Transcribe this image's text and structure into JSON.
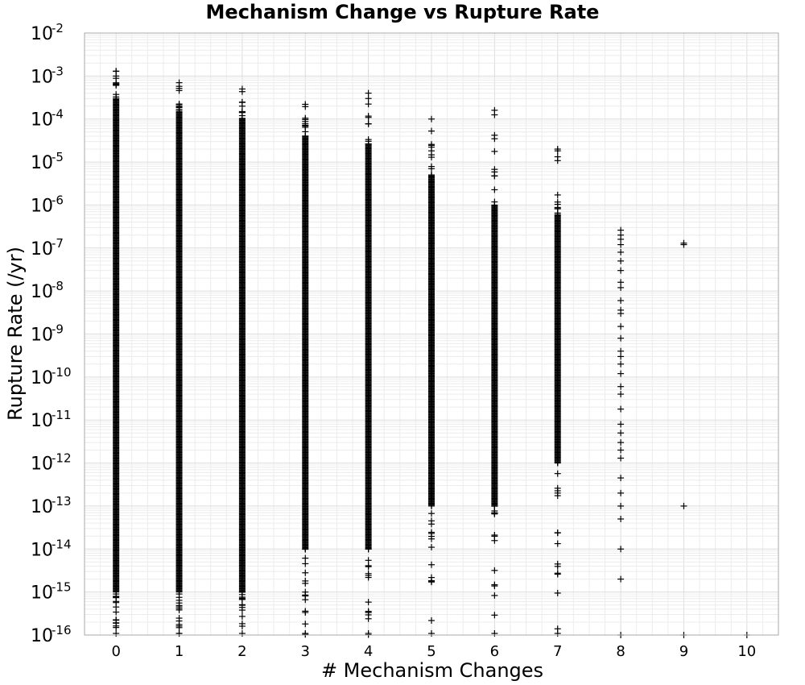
{
  "chart_data": {
    "type": "scatter",
    "title": "Mechanism Change vs Rupture Rate",
    "xlabel": "# Mechanism Changes",
    "ylabel": "Rupture Rate (/yr)",
    "marker": "plus",
    "marker_color": "#000000",
    "grid": true,
    "legend": "none",
    "xlim": [
      -0.5,
      10.5
    ],
    "xticks": [
      0,
      1,
      2,
      3,
      4,
      5,
      6,
      7,
      8,
      9,
      10
    ],
    "y_scale": "log",
    "ylim": [
      1e-16,
      0.01
    ],
    "yticks_exponents": [
      -16,
      -15,
      -14,
      -13,
      -12,
      -11,
      -10,
      -9,
      -8,
      -7,
      -6,
      -5,
      -4,
      -3,
      -2
    ],
    "ytick_base": "10",
    "series": [
      {
        "x": 0,
        "y_max": 0.0013,
        "y_min": 1e-16,
        "dense_max": 0.0003,
        "dense_min": 1e-15
      },
      {
        "x": 1,
        "y_max": 0.0007,
        "y_min": 1e-16,
        "dense_max": 0.00015,
        "dense_min": 1e-15
      },
      {
        "x": 2,
        "y_max": 0.0005,
        "y_min": 1e-16,
        "dense_max": 0.0001,
        "dense_min": 1e-15
      },
      {
        "x": 3,
        "y_max": 0.00022,
        "y_min": 1e-16,
        "dense_max": 4e-05,
        "dense_min": 1e-14
      },
      {
        "x": 4,
        "y_max": 0.0004,
        "y_min": 1e-16,
        "dense_max": 2.5e-05,
        "dense_min": 1e-14
      },
      {
        "x": 5,
        "y_max": 0.0001,
        "y_min": 1e-16,
        "dense_max": 5e-06,
        "dense_min": 1e-13
      },
      {
        "x": 6,
        "y_max": 0.00016,
        "y_min": 1e-16,
        "dense_max": 1e-06,
        "dense_min": 1e-13
      },
      {
        "x": 7,
        "y_max": 2e-05,
        "y_min": 1e-16,
        "dense_max": 6e-07,
        "dense_min": 1e-12
      },
      {
        "x": 8,
        "y_values": [
          2.6e-07,
          2e-07,
          1.6e-07,
          1.2e-07,
          8e-08,
          5e-08,
          3e-08,
          1.6e-08,
          1.2e-08,
          6e-09,
          3.6e-09,
          3e-09,
          1.5e-09,
          8e-10,
          4e-10,
          3e-10,
          2e-10,
          1.2e-10,
          6e-11,
          4e-11,
          1.8e-11,
          8e-12,
          5e-12,
          3e-12,
          2e-12,
          1.3e-12,
          4.5e-13,
          2e-13,
          1e-13,
          5e-14,
          1e-14,
          2e-15,
          1e-16
        ]
      },
      {
        "x": 9,
        "y_values": [
          1.3e-07,
          1.2e-07,
          1e-13,
          1e-16
        ]
      },
      {
        "x": 10,
        "y_values": [
          1e-16
        ]
      }
    ]
  }
}
